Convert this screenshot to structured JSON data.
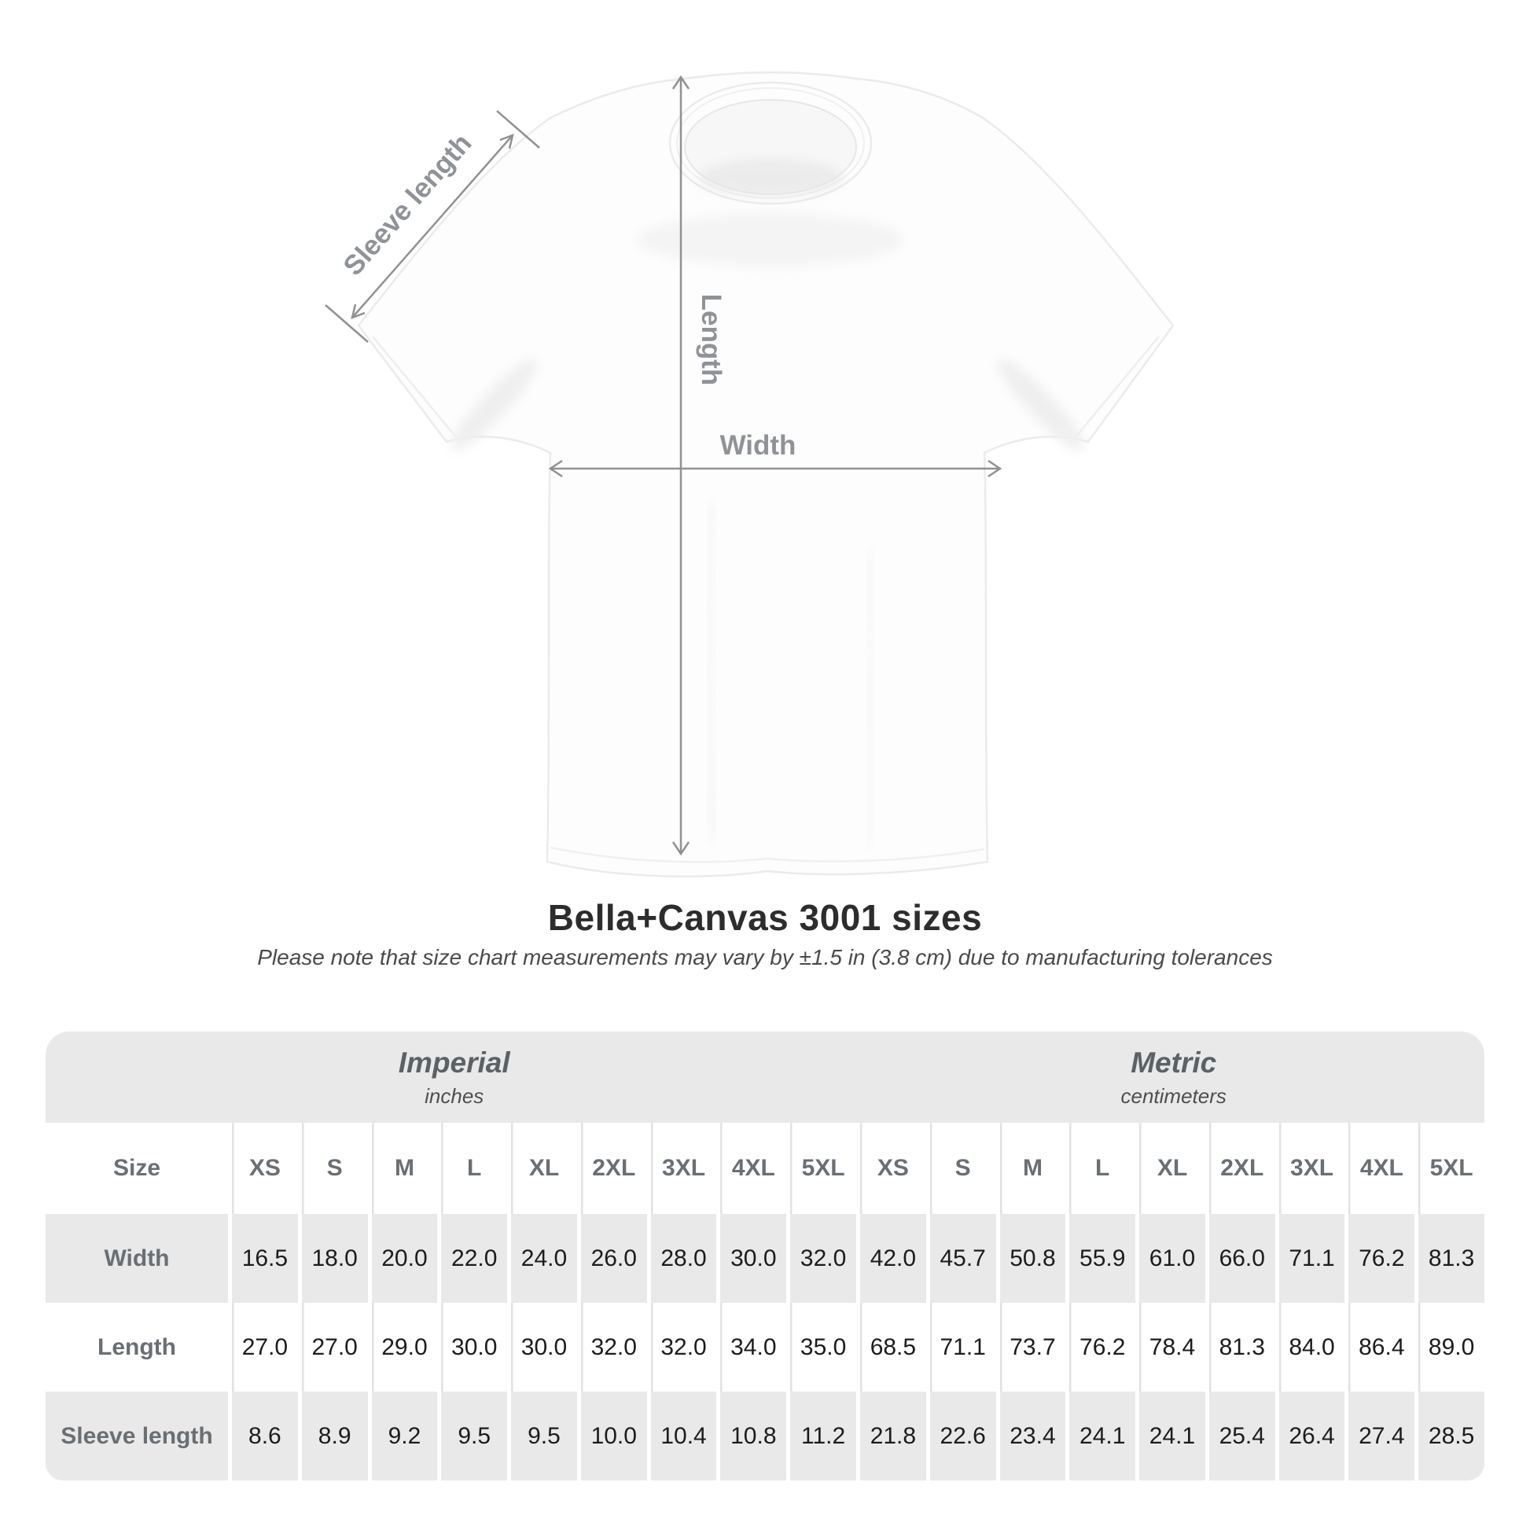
{
  "title": "Bella+Canvas 3001 sizes",
  "subtitle": "Please note that size chart measurements may vary by ±1.5 in (3.8 cm) due to manufacturing tolerances",
  "diagram": {
    "labels": {
      "sleeve_length": "Sleeve length",
      "length": "Length",
      "width": "Width"
    }
  },
  "table": {
    "size_col_label": "Size",
    "sections": [
      {
        "name": "Imperial",
        "unit": "inches"
      },
      {
        "name": "Metric",
        "unit": "centimeters"
      }
    ],
    "sizes": [
      "XS",
      "S",
      "M",
      "L",
      "XL",
      "2XL",
      "3XL",
      "4XL",
      "5XL"
    ],
    "rows": [
      {
        "label": "Width",
        "imperial": [
          "16.5",
          "18.0",
          "20.0",
          "22.0",
          "24.0",
          "26.0",
          "28.0",
          "30.0",
          "32.0"
        ],
        "metric": [
          "42.0",
          "45.7",
          "50.8",
          "55.9",
          "61.0",
          "66.0",
          "71.1",
          "76.2",
          "81.3"
        ]
      },
      {
        "label": "Length",
        "imperial": [
          "27.0",
          "27.0",
          "29.0",
          "30.0",
          "30.0",
          "32.0",
          "32.0",
          "34.0",
          "35.0"
        ],
        "metric": [
          "68.5",
          "71.1",
          "73.7",
          "76.2",
          "78.4",
          "81.3",
          "84.0",
          "86.4",
          "89.0"
        ]
      },
      {
        "label": "Sleeve length",
        "imperial": [
          "8.6",
          "8.9",
          "9.2",
          "9.5",
          "9.5",
          "10.0",
          "10.4",
          "10.8",
          "11.2"
        ],
        "metric": [
          "21.8",
          "22.6",
          "23.4",
          "24.1",
          "24.1",
          "25.4",
          "26.4",
          "27.4",
          "28.5"
        ]
      }
    ]
  },
  "colors": {
    "table_gray": "#e9e9e9",
    "separator_gray": "#e2e2e2",
    "annotation_line": "#919191",
    "annotation_text": "#8f9296",
    "header_text": "#6a6f74",
    "value_text": "#1c1c1c",
    "title_text": "#2d2d2d"
  },
  "chart_data": {
    "type": "table",
    "title": "Bella+Canvas 3001 sizes",
    "note": "Size chart measurements may vary by ±1.5 in (3.8 cm) due to manufacturing tolerances",
    "sections": [
      {
        "name": "Imperial",
        "unit": "inches",
        "sizes": [
          "XS",
          "S",
          "M",
          "L",
          "XL",
          "2XL",
          "3XL",
          "4XL",
          "5XL"
        ]
      },
      {
        "name": "Metric",
        "unit": "centimeters",
        "sizes": [
          "XS",
          "S",
          "M",
          "L",
          "XL",
          "2XL",
          "3XL",
          "4XL",
          "5XL"
        ]
      }
    ],
    "rows": [
      {
        "label": "Width",
        "imperial": [
          16.5,
          18.0,
          20.0,
          22.0,
          24.0,
          26.0,
          28.0,
          30.0,
          32.0
        ],
        "metric": [
          42.0,
          45.7,
          50.8,
          55.9,
          61.0,
          66.0,
          71.1,
          76.2,
          81.3
        ]
      },
      {
        "label": "Length",
        "imperial": [
          27.0,
          27.0,
          29.0,
          30.0,
          30.0,
          32.0,
          32.0,
          34.0,
          35.0
        ],
        "metric": [
          68.5,
          71.1,
          73.7,
          76.2,
          78.4,
          81.3,
          84.0,
          86.4,
          89.0
        ]
      },
      {
        "label": "Sleeve length",
        "imperial": [
          8.6,
          8.9,
          9.2,
          9.5,
          9.5,
          10.0,
          10.4,
          10.8,
          11.2
        ],
        "metric": [
          21.8,
          22.6,
          23.4,
          24.1,
          24.1,
          25.4,
          26.4,
          27.4,
          28.5
        ]
      }
    ]
  }
}
